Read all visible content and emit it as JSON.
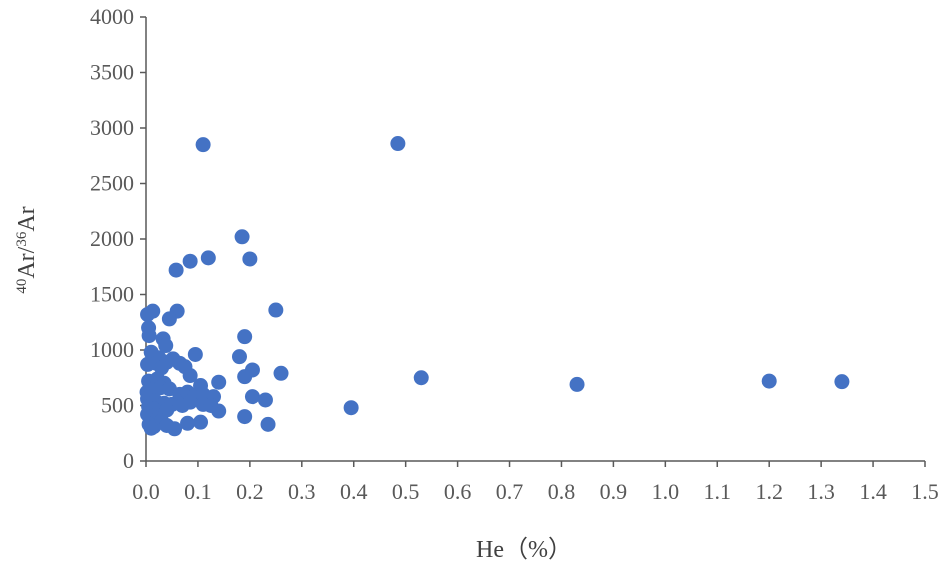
{
  "chart_data": {
    "type": "scatter",
    "title": "",
    "xlabel": "He（%）",
    "ylabel": {
      "sup1": "40",
      "base1": "Ar/",
      "sup2": "36",
      "base2": "Ar"
    },
    "xlim": [
      0,
      1.5
    ],
    "ylim": [
      0,
      4000
    ],
    "x_ticks": [
      "0.0",
      "0.1",
      "0.2",
      "0.3",
      "0.4",
      "0.5",
      "0.6",
      "0.7",
      "0.8",
      "0.9",
      "1.0",
      "1.1",
      "1.2",
      "1.3",
      "1.4",
      "1.5"
    ],
    "y_ticks": [
      "0",
      "500",
      "1000",
      "1500",
      "2000",
      "2500",
      "3000",
      "3500",
      "4000"
    ],
    "grid": false,
    "legend": "none",
    "marker_color": "#4472C4",
    "axis_color": "#595959",
    "points": [
      {
        "x": 0.11,
        "y": 2850
      },
      {
        "x": 0.485,
        "y": 2860
      },
      {
        "x": 0.185,
        "y": 2020
      },
      {
        "x": 0.2,
        "y": 1820
      },
      {
        "x": 0.12,
        "y": 1830
      },
      {
        "x": 0.085,
        "y": 1800
      },
      {
        "x": 0.058,
        "y": 1720
      },
      {
        "x": 0.013,
        "y": 1350
      },
      {
        "x": 0.003,
        "y": 1320
      },
      {
        "x": 0.06,
        "y": 1350
      },
      {
        "x": 0.045,
        "y": 1280
      },
      {
        "x": 0.25,
        "y": 1360
      },
      {
        "x": 0.005,
        "y": 1200
      },
      {
        "x": 0.006,
        "y": 1130
      },
      {
        "x": 0.033,
        "y": 1100
      },
      {
        "x": 0.038,
        "y": 1040
      },
      {
        "x": 0.19,
        "y": 1120
      },
      {
        "x": 0.01,
        "y": 980
      },
      {
        "x": 0.025,
        "y": 930
      },
      {
        "x": 0.095,
        "y": 960
      },
      {
        "x": 0.18,
        "y": 940
      },
      {
        "x": 0.052,
        "y": 920
      },
      {
        "x": 0.003,
        "y": 870
      },
      {
        "x": 0.02,
        "y": 880
      },
      {
        "x": 0.04,
        "y": 890
      },
      {
        "x": 0.065,
        "y": 880
      },
      {
        "x": 0.075,
        "y": 850
      },
      {
        "x": 0.03,
        "y": 840
      },
      {
        "x": 0.205,
        "y": 820
      },
      {
        "x": 0.26,
        "y": 790
      },
      {
        "x": 0.19,
        "y": 760
      },
      {
        "x": 0.085,
        "y": 770
      },
      {
        "x": 0.53,
        "y": 750
      },
      {
        "x": 0.005,
        "y": 720
      },
      {
        "x": 0.022,
        "y": 740
      },
      {
        "x": 0.035,
        "y": 700
      },
      {
        "x": 0.14,
        "y": 710
      },
      {
        "x": 0.105,
        "y": 680
      },
      {
        "x": 0.83,
        "y": 690
      },
      {
        "x": 1.2,
        "y": 720
      },
      {
        "x": 1.34,
        "y": 715
      },
      {
        "x": 0.002,
        "y": 620
      },
      {
        "x": 0.012,
        "y": 640
      },
      {
        "x": 0.028,
        "y": 660
      },
      {
        "x": 0.045,
        "y": 650
      },
      {
        "x": 0.065,
        "y": 600
      },
      {
        "x": 0.08,
        "y": 620
      },
      {
        "x": 0.095,
        "y": 590
      },
      {
        "x": 0.11,
        "y": 600
      },
      {
        "x": 0.13,
        "y": 580
      },
      {
        "x": 0.205,
        "y": 580
      },
      {
        "x": 0.23,
        "y": 550
      },
      {
        "x": 0.003,
        "y": 560
      },
      {
        "x": 0.018,
        "y": 540
      },
      {
        "x": 0.035,
        "y": 520
      },
      {
        "x": 0.05,
        "y": 510
      },
      {
        "x": 0.07,
        "y": 500
      },
      {
        "x": 0.085,
        "y": 530
      },
      {
        "x": 0.11,
        "y": 510
      },
      {
        "x": 0.125,
        "y": 500
      },
      {
        "x": 0.395,
        "y": 480
      },
      {
        "x": 0.005,
        "y": 490
      },
      {
        "x": 0.015,
        "y": 470
      },
      {
        "x": 0.025,
        "y": 450
      },
      {
        "x": 0.04,
        "y": 460
      },
      {
        "x": 0.14,
        "y": 450
      },
      {
        "x": 0.003,
        "y": 420
      },
      {
        "x": 0.012,
        "y": 400
      },
      {
        "x": 0.022,
        "y": 380
      },
      {
        "x": 0.03,
        "y": 360
      },
      {
        "x": 0.19,
        "y": 400
      },
      {
        "x": 0.08,
        "y": 340
      },
      {
        "x": 0.105,
        "y": 350
      },
      {
        "x": 0.235,
        "y": 330
      },
      {
        "x": 0.006,
        "y": 330
      },
      {
        "x": 0.015,
        "y": 310
      },
      {
        "x": 0.01,
        "y": 295
      },
      {
        "x": 0.055,
        "y": 290
      },
      {
        "x": 0.04,
        "y": 320
      }
    ]
  }
}
